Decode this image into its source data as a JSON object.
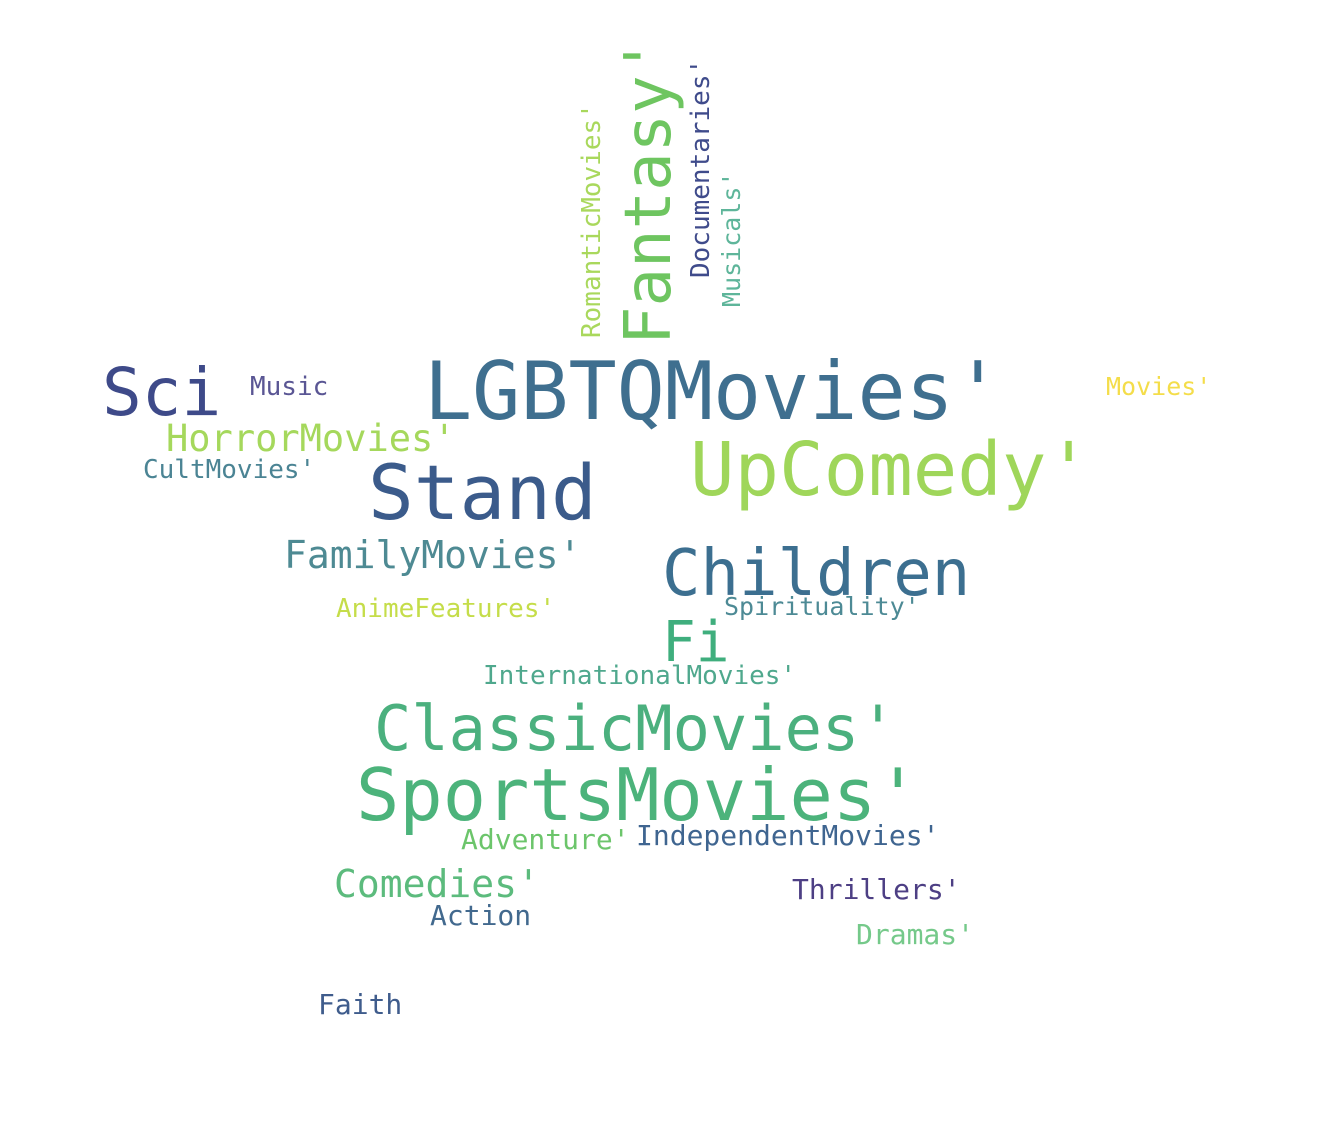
{
  "words": [
    {
      "text": "LGBTQMovies'",
      "color": "#3f6f8f"
    },
    {
      "text": "UpComedy'",
      "color": "#9fd65a"
    },
    {
      "text": "Stand",
      "color": "#3b5b8b"
    },
    {
      "text": "Sci",
      "color": "#3e4a89"
    },
    {
      "text": "Children",
      "color": "#3c6f90"
    },
    {
      "text": "SportsMovies'",
      "color": "#4cb37b"
    },
    {
      "text": "ClassicMovies'",
      "color": "#4bb07e"
    },
    {
      "text": "Fi",
      "color": "#3fae7d"
    },
    {
      "text": "Fantasy'",
      "color": "#6ec560"
    },
    {
      "text": "FamilyMovies'",
      "color": "#4e8a93"
    },
    {
      "text": "HorrorMovies'",
      "color": "#a5d85c"
    },
    {
      "text": "CultMovies'",
      "color": "#4b8494"
    },
    {
      "text": "Music",
      "color": "#5a5694"
    },
    {
      "text": "Movies'",
      "color": "#f4dd4a"
    },
    {
      "text": "AnimeFeatures'",
      "color": "#c5dd4a"
    },
    {
      "text": "Spirituality'",
      "color": "#4d8a95"
    },
    {
      "text": "InternationalMovies'",
      "color": "#4fa88d"
    },
    {
      "text": "Adventure'",
      "color": "#6cc56b"
    },
    {
      "text": "IndependentMovies'",
      "color": "#3f6590"
    },
    {
      "text": "Comedies'",
      "color": "#5cbb7d"
    },
    {
      "text": "Action",
      "color": "#42698e"
    },
    {
      "text": "Thrillers'",
      "color": "#4d3f84"
    },
    {
      "text": "Dramas'",
      "color": "#75c98a"
    },
    {
      "text": "Faith",
      "color": "#3f5c8c"
    },
    {
      "text": "RomanticMovies'",
      "color": "#a9d85c"
    },
    {
      "text": "Documentaries'",
      "color": "#3f4b8b"
    },
    {
      "text": "Musicals'",
      "color": "#5eb59a"
    }
  ]
}
